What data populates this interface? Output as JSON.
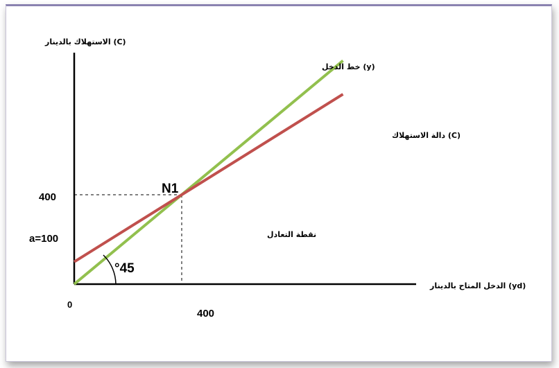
{
  "chart_data": {
    "type": "line",
    "ylabel": "الاستهلاك بالدينار (C)",
    "xlabel": "الدخل المتاح بالدينار (yd)",
    "xlim": [
      0,
      1100
    ],
    "ylim": [
      0,
      1050
    ],
    "series": [
      {
        "name": "خط الدخل (y)",
        "color": "#92c04e",
        "x": [
          0,
          1000
        ],
        "y": [
          0,
          1000
        ]
      },
      {
        "name": "دالة الاستهلاك (C)",
        "color": "#c0504d",
        "x": [
          0,
          1000
        ],
        "y": [
          100,
          850
        ]
      }
    ],
    "equilibrium": {
      "label": "N1",
      "x": 400,
      "y": 400
    },
    "annotations": {
      "equilibrium_text": "نقطة التعادل",
      "angle_label": "°45",
      "intercept_label": "a=100",
      "x_tick": "400",
      "y_tick": "400",
      "origin": "0"
    }
  }
}
